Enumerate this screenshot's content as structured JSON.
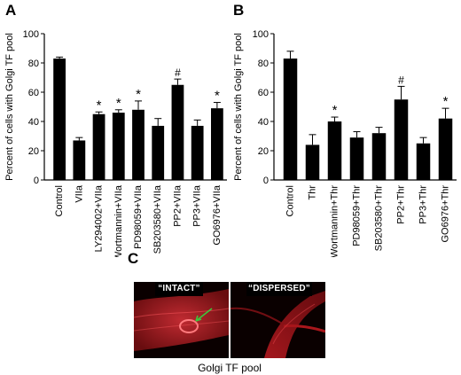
{
  "panels": {
    "a": "A",
    "b": "B",
    "c": "C"
  },
  "chart_data": [
    {
      "type": "bar",
      "ylabel": "Percent of cells with Golgi TF pool",
      "ylim": [
        0,
        100
      ],
      "yticks": [
        0,
        20,
        40,
        60,
        80,
        100
      ],
      "categories": [
        "Control",
        "VIIa",
        "LY294002+VIIa",
        "Wortmannin+VIIa",
        "PD98059+VIIa",
        "SB203580+VIIa",
        "PP2+VIIa",
        "PP3+VIIa",
        "GO6976+VIIa"
      ],
      "values": [
        83,
        27,
        45,
        46,
        48,
        37,
        65,
        37,
        49
      ],
      "errors": [
        1,
        2,
        1.5,
        2,
        6,
        5,
        4,
        4,
        4
      ],
      "annotations": [
        "",
        "",
        "*",
        "*",
        "*",
        "",
        "#",
        "",
        "*"
      ]
    },
    {
      "type": "bar",
      "ylabel": "Percent of cells with Golgi TF pool",
      "ylim": [
        0,
        100
      ],
      "yticks": [
        0,
        20,
        40,
        60,
        80,
        100
      ],
      "categories": [
        "Control",
        "Thr",
        "Wortmannin+Thr",
        "PD98059+Thr",
        "SB203580+Thr",
        "PP2+Thr",
        "PP3+Thr",
        "GO6976+Thr"
      ],
      "values": [
        83,
        24,
        40,
        29,
        32,
        55,
        25,
        42
      ],
      "errors": [
        5,
        7,
        3,
        4,
        4,
        9,
        4,
        7
      ],
      "annotations": [
        "",
        "",
        "*",
        "",
        "",
        "#",
        "",
        "*"
      ]
    }
  ],
  "images": {
    "intact_label": "“INTACT”",
    "dispersed_label": "“DISPERSED”",
    "caption": "Golgi TF pool"
  },
  "colors": {
    "bar": "#000000",
    "micrograph_bg": "#0a0000",
    "cell": "#c81e23",
    "arrow": "#3cc83c"
  }
}
